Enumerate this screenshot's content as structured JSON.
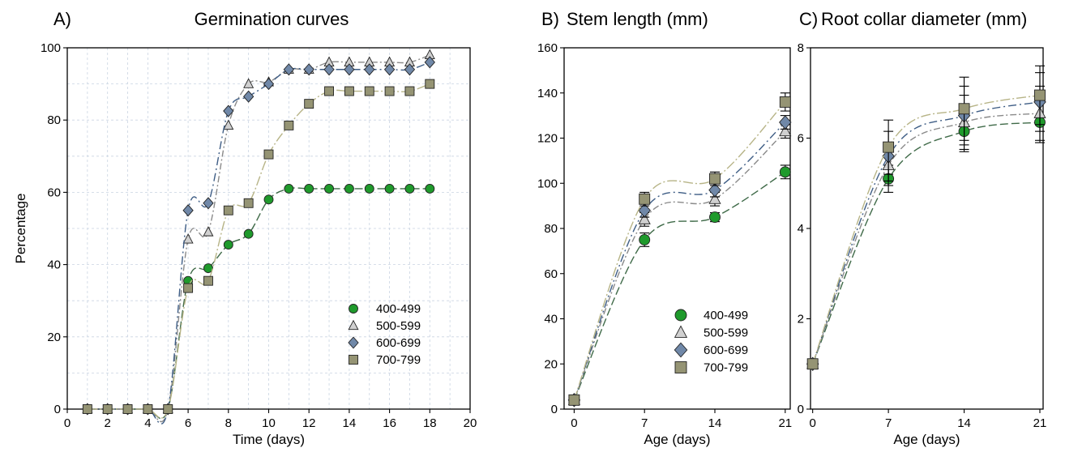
{
  "chart_data": [
    {
      "type": "scatter",
      "panel_label": "A)",
      "title": "Germination curves",
      "xlabel": "Time (days)",
      "ylabel": "Percentage",
      "xlim": [
        0,
        20
      ],
      "ylim": [
        0,
        100
      ],
      "xticks": [
        0,
        2,
        4,
        6,
        8,
        10,
        12,
        14,
        16,
        18,
        20
      ],
      "yticks": [
        0,
        20,
        40,
        60,
        80,
        100
      ],
      "grid": true,
      "legend": "bottom-right",
      "x": [
        1,
        2,
        3,
        4,
        5,
        6,
        7,
        8,
        9,
        10,
        11,
        12,
        13,
        14,
        15,
        16,
        17,
        18
      ],
      "series": [
        {
          "name": "400-499",
          "marker": "circle",
          "color": "#1f9a2c",
          "line_color": "#3f6a48",
          "values": [
            0,
            0,
            0,
            0,
            0,
            35.5,
            39,
            45.5,
            48.5,
            58,
            61,
            61,
            61,
            61,
            61,
            61,
            61,
            61
          ]
        },
        {
          "name": "500-599",
          "marker": "triangle",
          "color": "#d0d0d0",
          "line_color": "#8a8a8a",
          "values": [
            0,
            0,
            0,
            0,
            0,
            47,
            49,
            78.5,
            90,
            90.5,
            94,
            94,
            96,
            96,
            96,
            96,
            96,
            98
          ]
        },
        {
          "name": "600-699",
          "marker": "diamond",
          "color": "#7088a8",
          "line_color": "#3e5d85",
          "values": [
            0,
            0,
            0,
            0,
            0,
            55,
            57,
            82.5,
            86.5,
            90,
            94,
            94,
            94,
            94,
            94,
            94,
            94,
            96
          ]
        },
        {
          "name": "700-799",
          "marker": "square",
          "color": "#959474",
          "line_color": "#b7b487",
          "values": [
            0,
            0,
            0,
            0,
            0,
            33.5,
            35.5,
            55,
            57,
            70.5,
            78.5,
            84.5,
            88,
            88,
            88,
            88,
            88,
            90
          ]
        }
      ]
    },
    {
      "type": "line",
      "panel_label": "B)",
      "title": "Stem length (mm)",
      "xlabel": "Age (days)",
      "ylabel": "",
      "xlim": [
        -1,
        21.5
      ],
      "ylim": [
        0,
        160
      ],
      "xticks": [
        0,
        7,
        14,
        21
      ],
      "yticks": [
        0,
        20,
        40,
        60,
        80,
        100,
        120,
        140,
        160
      ],
      "grid": false,
      "legend": "bottom-center",
      "x": [
        0,
        7,
        14,
        21
      ],
      "series": [
        {
          "name": "400-499",
          "marker": "circle",
          "color": "#1f9a2c",
          "line_color": "#3f6a48",
          "values": [
            4,
            75,
            85,
            105
          ],
          "error": [
            0,
            3,
            2,
            3
          ]
        },
        {
          "name": "500-599",
          "marker": "triangle",
          "color": "#d0d0d0",
          "line_color": "#8a8a8a",
          "values": [
            4,
            84,
            93,
            123
          ],
          "error": [
            0,
            3,
            3,
            3
          ]
        },
        {
          "name": "600-699",
          "marker": "diamond",
          "color": "#7088a8",
          "line_color": "#3e5d85",
          "values": [
            4,
            88,
            97,
            127
          ],
          "error": [
            0,
            3,
            3,
            3
          ]
        },
        {
          "name": "700-799",
          "marker": "square",
          "color": "#959474",
          "line_color": "#b7b487",
          "values": [
            4,
            93,
            102,
            136
          ],
          "error": [
            0,
            3,
            3,
            4
          ]
        }
      ]
    },
    {
      "type": "line",
      "panel_label": "C)",
      "title": "Root collar diameter (mm)",
      "xlabel": "Age (days)",
      "ylabel": "",
      "xlim": [
        -0.2,
        21.3
      ],
      "ylim": [
        0,
        8
      ],
      "xticks": [
        0,
        7,
        14,
        21
      ],
      "yticks": [
        0,
        2,
        4,
        6,
        8
      ],
      "grid": false,
      "x": [
        0,
        7,
        14,
        21
      ],
      "series": [
        {
          "name": "400-499",
          "marker": "circle",
          "color": "#1f9a2c",
          "line_color": "#3f6a48",
          "values": [
            1.0,
            5.1,
            6.15,
            6.35
          ],
          "error": [
            0,
            0.3,
            0.45,
            0.45
          ]
        },
        {
          "name": "500-599",
          "marker": "triangle",
          "color": "#d0d0d0",
          "line_color": "#8a8a8a",
          "values": [
            1.0,
            5.4,
            6.35,
            6.55
          ],
          "error": [
            0,
            0.45,
            0.6,
            0.6
          ]
        },
        {
          "name": "600-699",
          "marker": "diamond",
          "color": "#7088a8",
          "line_color": "#3e5d85",
          "values": [
            1.0,
            5.6,
            6.5,
            6.8
          ],
          "error": [
            0,
            0.55,
            0.65,
            0.65
          ]
        },
        {
          "name": "700-799",
          "marker": "square",
          "color": "#959474",
          "line_color": "#b7b487",
          "values": [
            1.0,
            5.8,
            6.65,
            6.95
          ],
          "error": [
            0,
            0.6,
            0.7,
            0.65
          ]
        }
      ]
    }
  ]
}
